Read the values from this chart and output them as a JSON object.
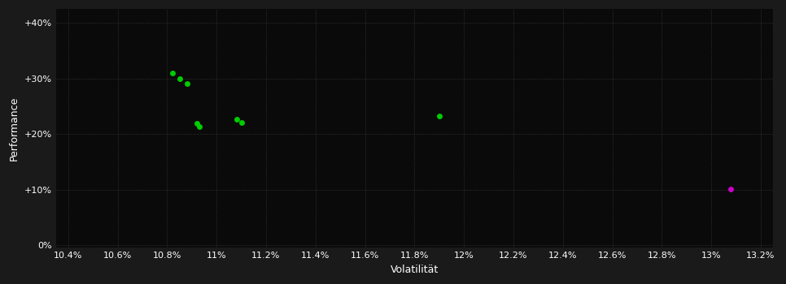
{
  "background_color": "#1a1a1a",
  "plot_bg_color": "#0a0a0a",
  "grid_color": "#444444",
  "text_color": "#ffffff",
  "xlabel": "Volatilität",
  "ylabel": "Performance",
  "xlim": [
    0.1035,
    0.1325
  ],
  "ylim": [
    -0.005,
    0.425
  ],
  "xticks": [
    0.104,
    0.106,
    0.108,
    0.11,
    0.112,
    0.114,
    0.116,
    0.118,
    0.12,
    0.122,
    0.124,
    0.126,
    0.128,
    0.13,
    0.132
  ],
  "xtick_labels": [
    "10.4%",
    "10.6%",
    "10.8%",
    "11%",
    "11.2%",
    "11.4%",
    "11.6%",
    "11.8%",
    "12%",
    "12.2%",
    "12.4%",
    "12.6%",
    "12.8%",
    "13%",
    "13.2%"
  ],
  "yticks": [
    0.0,
    0.1,
    0.2,
    0.3,
    0.4
  ],
  "ytick_labels": [
    "0%",
    "+10%",
    "+20%",
    "+30%",
    "+40%"
  ],
  "green_points": [
    [
      0.1082,
      0.31
    ],
    [
      0.1085,
      0.3
    ],
    [
      0.1088,
      0.291
    ],
    [
      0.1092,
      0.219
    ],
    [
      0.1093,
      0.214
    ],
    [
      0.1108,
      0.226
    ],
    [
      0.111,
      0.221
    ],
    [
      0.119,
      0.232
    ]
  ],
  "magenta_points": [
    [
      0.1308,
      0.101
    ]
  ],
  "green_color": "#00cc00",
  "magenta_color": "#cc00cc",
  "point_size": 25
}
